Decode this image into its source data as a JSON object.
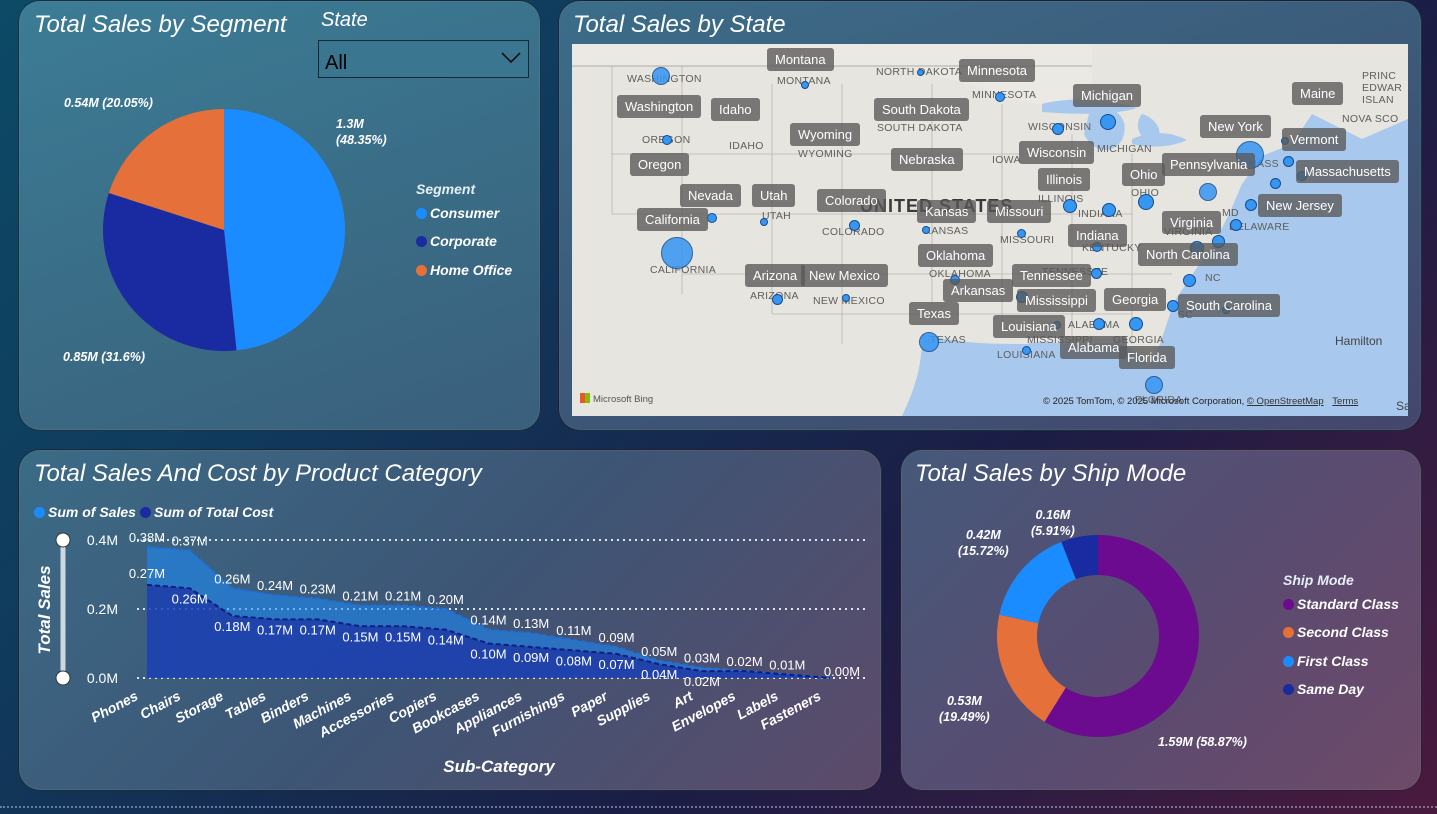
{
  "segment_panel": {
    "title": "Total Sales by Segment",
    "slicer": {
      "title": "State",
      "value": "All"
    },
    "legend_title": "Segment",
    "chart_data": {
      "type": "pie",
      "title": "Total Sales by Segment",
      "legend_title": "Segment",
      "series": [
        {
          "name": "Consumer",
          "value": 1.3,
          "unit": "M",
          "percent": 48.35,
          "label": "1.3M (48.35%)",
          "color": "#1a8cff"
        },
        {
          "name": "Corporate",
          "value": 0.85,
          "unit": "M",
          "percent": 31.6,
          "label": "0.85M (31.6%)",
          "color": "#1a2aa0"
        },
        {
          "name": "Home Office",
          "value": 0.54,
          "unit": "M",
          "percent": 20.05,
          "label": "0.54M (20.05%)",
          "color": "#e5703a"
        }
      ]
    },
    "labels": {
      "consumer_line1": "1.3M",
      "consumer_line2": "(48.35%)",
      "corporate": "0.85M (31.6%)",
      "home_office": "0.54M (20.05%)"
    }
  },
  "map_panel": {
    "title": "Total Sales by State",
    "country_label": "UNITED STATES",
    "state_labels": [
      "Montana",
      "Minnesota",
      "Washington",
      "Idaho",
      "South Dakota",
      "Michigan",
      "Maine",
      "New York",
      "Vermont",
      "Wyoming",
      "Wisconsin",
      "Oregon",
      "Nebraska",
      "Pennsylvania",
      "Massachusetts",
      "Illinois",
      "Ohio",
      "Nevada",
      "Utah",
      "Colorado",
      "Kansas",
      "Missouri",
      "New Jersey",
      "California",
      "Virginia",
      "Indiana",
      "Oklahoma",
      "North Carolina",
      "Arizona",
      "New Mexico",
      "Tennessee",
      "Arkansas",
      "Mississippi",
      "Georgia",
      "South Carolina",
      "Texas",
      "Louisiana",
      "Alabama",
      "Florida"
    ],
    "base_labels": [
      "WASHINGTON",
      "MONTANA",
      "NORTH DAKOTA",
      "MINNESOTA",
      "PRINC",
      "EDWAR",
      "ISLAN",
      "NOVA SCO",
      "SOUTH DAKOTA",
      "OREGON",
      "IDAHO",
      "WYOMING",
      "WISCONSIN",
      "MICHIGAN",
      "IOWA",
      "MASS",
      "OHIO",
      "ILLINOIS",
      "UTAH",
      "KANSAS",
      "INDIANA",
      "MD",
      "DELAWARE",
      "COLORADO",
      "MISSOURI",
      "VIRGINIA",
      "KENTUCKY",
      "CALIFORNIA",
      "OKLAHOMA",
      "TENNESSEE",
      "NC",
      "ARIZONA",
      "NEW MEXICO",
      "SC",
      "ALABAMA",
      "MISSISSIPPI",
      "GEORGIA",
      "TEXAS",
      "LOUISIANA",
      "FLORIDA",
      "Hamilton",
      "Sa"
    ],
    "bing_logo": "Microsoft Bing",
    "attribution": "© 2025 TomTom, © 2025 Microsoft Corporation,",
    "osm_link": "© OpenStreetMap",
    "terms_link": "Terms",
    "bubble_color": "#3596f3"
  },
  "category_panel": {
    "title": "Total Sales And Cost by Product Category",
    "chart_data": {
      "type": "area",
      "title": "Total Sales And Cost by Product Category",
      "xlabel": "Sub-Category",
      "ylabel": "Total Sales",
      "ylim": [
        0,
        0.4
      ],
      "yticks": [
        "0.0M",
        "0.2M",
        "0.4M"
      ],
      "grid": true,
      "legend_position": "top-left",
      "categories": [
        "Phones",
        "Chairs",
        "Storage",
        "Tables",
        "Binders",
        "Machines",
        "Accessories",
        "Copiers",
        "Bookcases",
        "Appliances",
        "Furnishings",
        "Paper",
        "Supplies",
        "Art",
        "Envelopes",
        "Labels",
        "Fasteners"
      ],
      "series": [
        {
          "name": "Sum of Sales",
          "color": "#1a8cff",
          "values": [
            0.38,
            0.37,
            0.26,
            0.24,
            0.23,
            0.21,
            0.21,
            0.2,
            0.14,
            0.13,
            0.11,
            0.09,
            0.05,
            0.03,
            0.02,
            0.01,
            0.0
          ],
          "labels": [
            "0.38M",
            "0.37M",
            "0.26M",
            "0.24M",
            "0.23M",
            "0.21M",
            "0.21M",
            "0.20M",
            "0.14M",
            "0.13M",
            "0.11M",
            "0.09M",
            "0.05M",
            "0.03M",
            "0.02M",
            "0.01M",
            "0.00M"
          ]
        },
        {
          "name": "Sum of Total Cost",
          "color": "#1a2aa0",
          "values": [
            0.27,
            0.26,
            0.18,
            0.17,
            0.17,
            0.15,
            0.15,
            0.14,
            0.1,
            0.09,
            0.08,
            0.07,
            0.04,
            0.02,
            0.02,
            0.01,
            0.0
          ],
          "labels": [
            "0.27M",
            "0.26M",
            "0.18M",
            "0.17M",
            "0.17M",
            "0.15M",
            "0.15M",
            "0.14M",
            "0.10M",
            "0.09M",
            "0.08M",
            "0.07M",
            "0.04M",
            "0.02M",
            "",
            "",
            ""
          ]
        }
      ]
    }
  },
  "ship_panel": {
    "title": "Total Sales by Ship Mode",
    "legend_title": "Ship Mode",
    "chart_data": {
      "type": "pie",
      "title": "Total Sales by Ship Mode",
      "legend_title": "Ship Mode",
      "series": [
        {
          "name": "Standard Class",
          "value": 1.59,
          "unit": "M",
          "percent": 58.87,
          "label": "1.59M (58.87%)",
          "color": "#6c0b8f"
        },
        {
          "name": "Second Class",
          "value": 0.53,
          "unit": "M",
          "percent": 19.49,
          "label": "0.53M (19.49%)",
          "color": "#e5703a"
        },
        {
          "name": "First Class",
          "value": 0.42,
          "unit": "M",
          "percent": 15.72,
          "label": "0.42M (15.72%)",
          "color": "#1a8cff"
        },
        {
          "name": "Same Day",
          "value": 0.16,
          "unit": "M",
          "percent": 5.91,
          "label": "0.16M (5.91%)",
          "color": "#1a2aa0"
        }
      ]
    },
    "labels": {
      "standard": "1.59M (58.87%)",
      "second_1": "0.53M",
      "second_2": "(19.49%)",
      "first_1": "0.42M",
      "first_2": "(15.72%)",
      "same_1": "0.16M",
      "same_2": "(5.91%)"
    }
  }
}
